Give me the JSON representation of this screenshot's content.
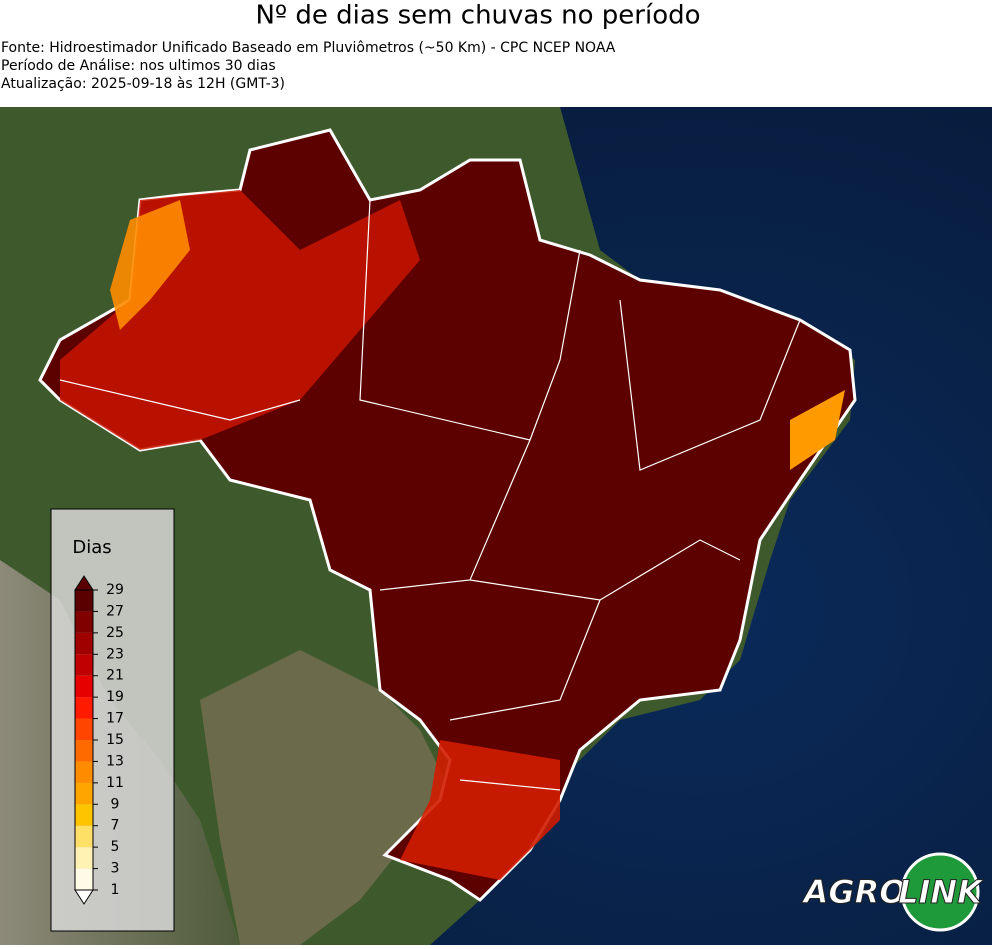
{
  "header": {
    "title": "Nº de dias sem chuvas no período",
    "lines": [
      "Fonte: Hidroestimador Unificado Baseado em Pluviômetros (~50 Km) - CPC NCEP NOAA",
      "Período de Análise: nos ultimos 30 dias",
      "Atualização: 2025-09-18 às 12H (GMT-3)"
    ]
  },
  "legend": {
    "title": "Dias",
    "ticks": [
      1,
      3,
      5,
      7,
      9,
      11,
      13,
      15,
      17,
      19,
      21,
      23,
      25,
      27,
      29
    ],
    "colors": [
      "#fffbe6",
      "#fff2b3",
      "#ffe066",
      "#ffc400",
      "#ffa500",
      "#ff8c00",
      "#ff6a00",
      "#ff4500",
      "#ff1a00",
      "#e60000",
      "#c00000",
      "#a00000",
      "#800000",
      "#5a0000"
    ]
  },
  "logo": {
    "left": "AGRO",
    "right": "LINK"
  }
}
